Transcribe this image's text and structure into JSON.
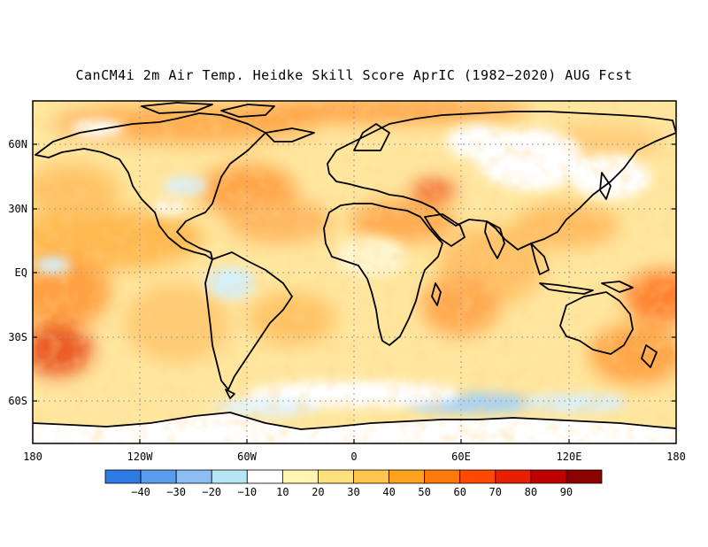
{
  "title": "CanCM4i 2m Air Temp. Heidke Skill Score AprIC (1982−2020) AUG Fcst",
  "lat_ticks": [
    "60N",
    "30N",
    "EQ",
    "30S",
    "60S"
  ],
  "lon_ticks": [
    "180",
    "120W",
    "60W",
    "0",
    "60E",
    "120E",
    "180"
  ],
  "colorbar": {
    "labels": [
      "−40",
      "−30",
      "−20",
      "−10",
      "10",
      "20",
      "30",
      "40",
      "50",
      "60",
      "70",
      "80",
      "90"
    ],
    "colors": [
      "#2f7be6",
      "#5a9ded",
      "#8cbdf3",
      "#b9e6f7",
      "#ffffff",
      "#fff5b0",
      "#ffe17c",
      "#ffc54e",
      "#ffa21c",
      "#ff7a0a",
      "#ff4a00",
      "#e62000",
      "#c00000",
      "#8c0000"
    ]
  },
  "map": {
    "land_outline_color": "#000000",
    "grid_color": "#999999"
  }
}
